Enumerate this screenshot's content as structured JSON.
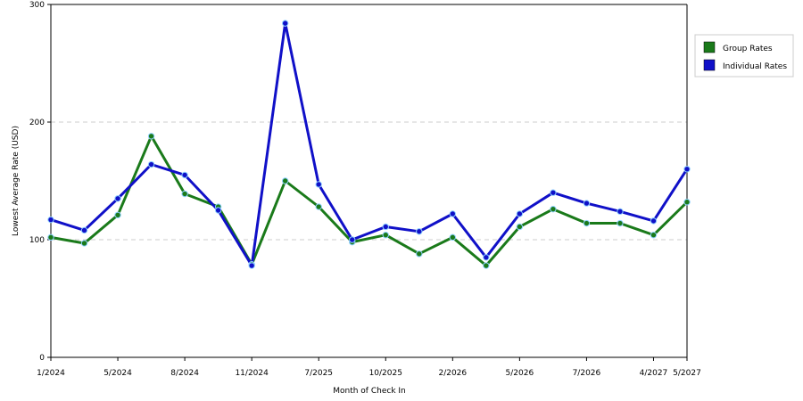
{
  "chart_data": {
    "type": "line",
    "title": "",
    "xlabel": "Month of Check In",
    "ylabel": "Lowest Average Rate (USD)",
    "ylim": [
      0,
      300
    ],
    "yticks": [
      0,
      100,
      200,
      300
    ],
    "grid": true,
    "legend_position": "top-right",
    "x_tick_labels": [
      {
        "index": 0,
        "label": "1/2024"
      },
      {
        "index": 2,
        "label": "5/2024"
      },
      {
        "index": 4,
        "label": "8/2024"
      },
      {
        "index": 6,
        "label": "11/2024"
      },
      {
        "index": 8,
        "label": "7/2025"
      },
      {
        "index": 10,
        "label": "10/2025"
      },
      {
        "index": 12,
        "label": "2/2026"
      },
      {
        "index": 14,
        "label": "5/2026"
      },
      {
        "index": 16,
        "label": "7/2026"
      },
      {
        "index": 18,
        "label": "4/2027"
      },
      {
        "index": 19,
        "label": "5/2027"
      }
    ],
    "series": [
      {
        "name": "Group Rates",
        "color": "#1a7a1a",
        "values": [
          102,
          97,
          121,
          188,
          139,
          128,
          79,
          150,
          128,
          98,
          104,
          88,
          102,
          78,
          111,
          126,
          114,
          114,
          104,
          132
        ]
      },
      {
        "name": "Individual Rates",
        "color": "#1010c8",
        "values": [
          117,
          108,
          135,
          164,
          155,
          125,
          78,
          284,
          147,
          100,
          111,
          107,
          122,
          85,
          122,
          140,
          131,
          124,
          116,
          160
        ]
      }
    ]
  }
}
